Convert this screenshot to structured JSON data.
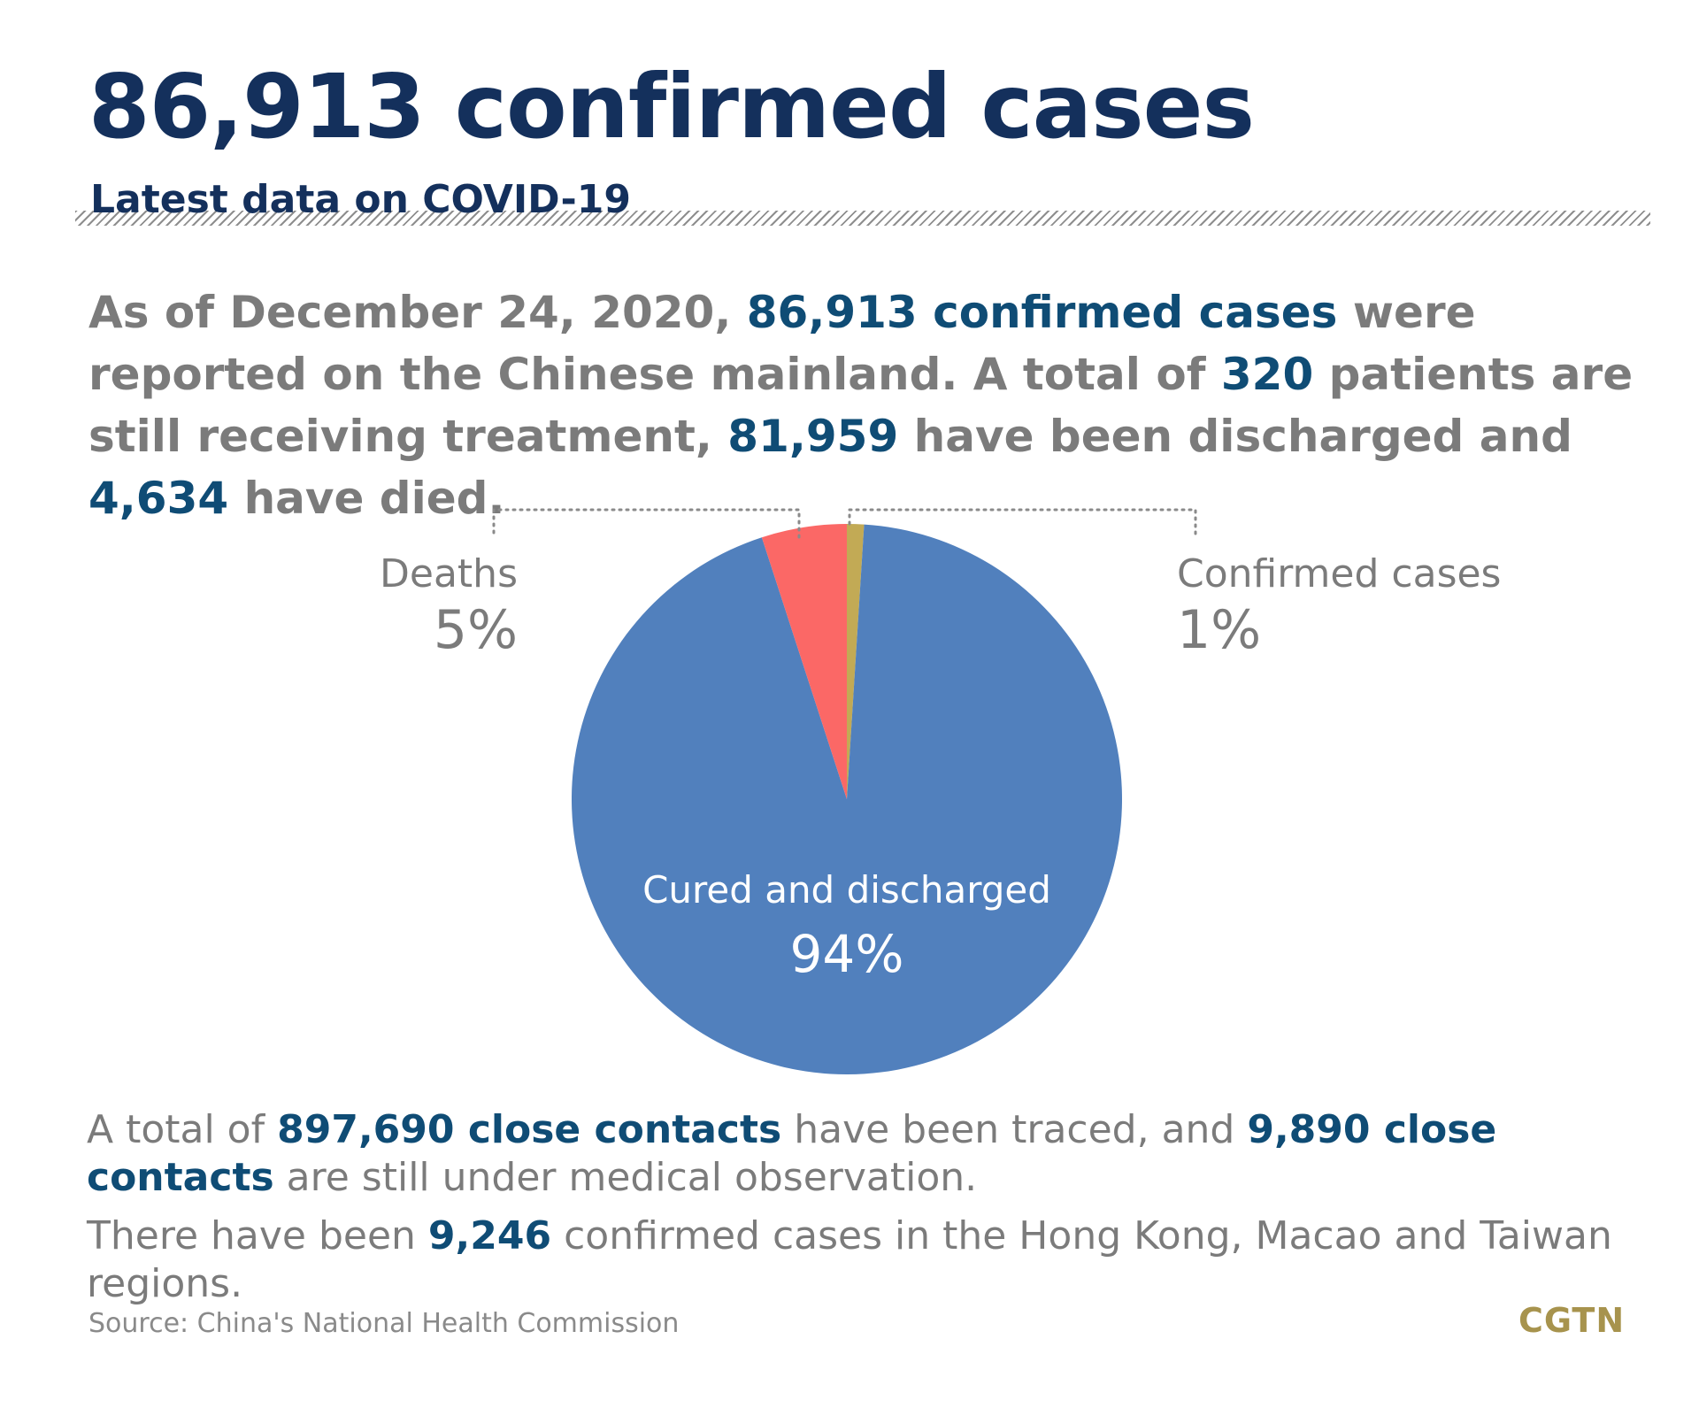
{
  "header": {
    "title": "86,913 confirmed cases",
    "subtitle": "Latest data on COVID-19"
  },
  "intro": {
    "t1": "As of December 24, 2020, ",
    "h1": "86,913 confirmed cases",
    "t2": " were reported on the Chinese mainland. A total of ",
    "h2": "320",
    "t3": " patients are still receiving treatment, ",
    "h3": "81,959",
    "t4": " have been discharged and ",
    "h4": "4,634",
    "t5": " have died."
  },
  "chart_data": {
    "type": "pie",
    "slices": [
      {
        "label": "Confirmed cases",
        "value": 1,
        "display": "1%",
        "color": "#c2aa55"
      },
      {
        "label": "Cured and discharged",
        "value": 94,
        "display": "94%",
        "color": "#5180bd"
      },
      {
        "label": "Deaths",
        "value": 5,
        "display": "5%",
        "color": "#fb6866"
      }
    ],
    "start_angle": "12 o'clock, clockwise"
  },
  "labels": {
    "deaths_label": "Deaths",
    "deaths_pct": "5%",
    "confirmed_label": "Confirmed cases",
    "confirmed_pct": "1%",
    "cured_label": "Cured and discharged",
    "cured_pct": "94%"
  },
  "bottom": {
    "p1_t1": "A total of ",
    "p1_h1": "897,690 close contacts",
    "p1_t2": " have been traced, and ",
    "p1_h2": "9,890 close contacts",
    "p1_t3": " are still under medical observation.",
    "p2_t1": "There have been ",
    "p2_h1": "9,246",
    "p2_t2": " confirmed cases in the Hong Kong, Macao and Taiwan regions."
  },
  "footer": {
    "source": "Source: China's National Health Commission",
    "logo": "CGTN"
  },
  "colors": {
    "title": "#14305c",
    "highlight": "#0f4c75",
    "body_text": "#7b7b7b",
    "cured": "#5180bd",
    "deaths": "#fb6866",
    "confirmed": "#c2aa55",
    "logo": "#a7934d"
  }
}
